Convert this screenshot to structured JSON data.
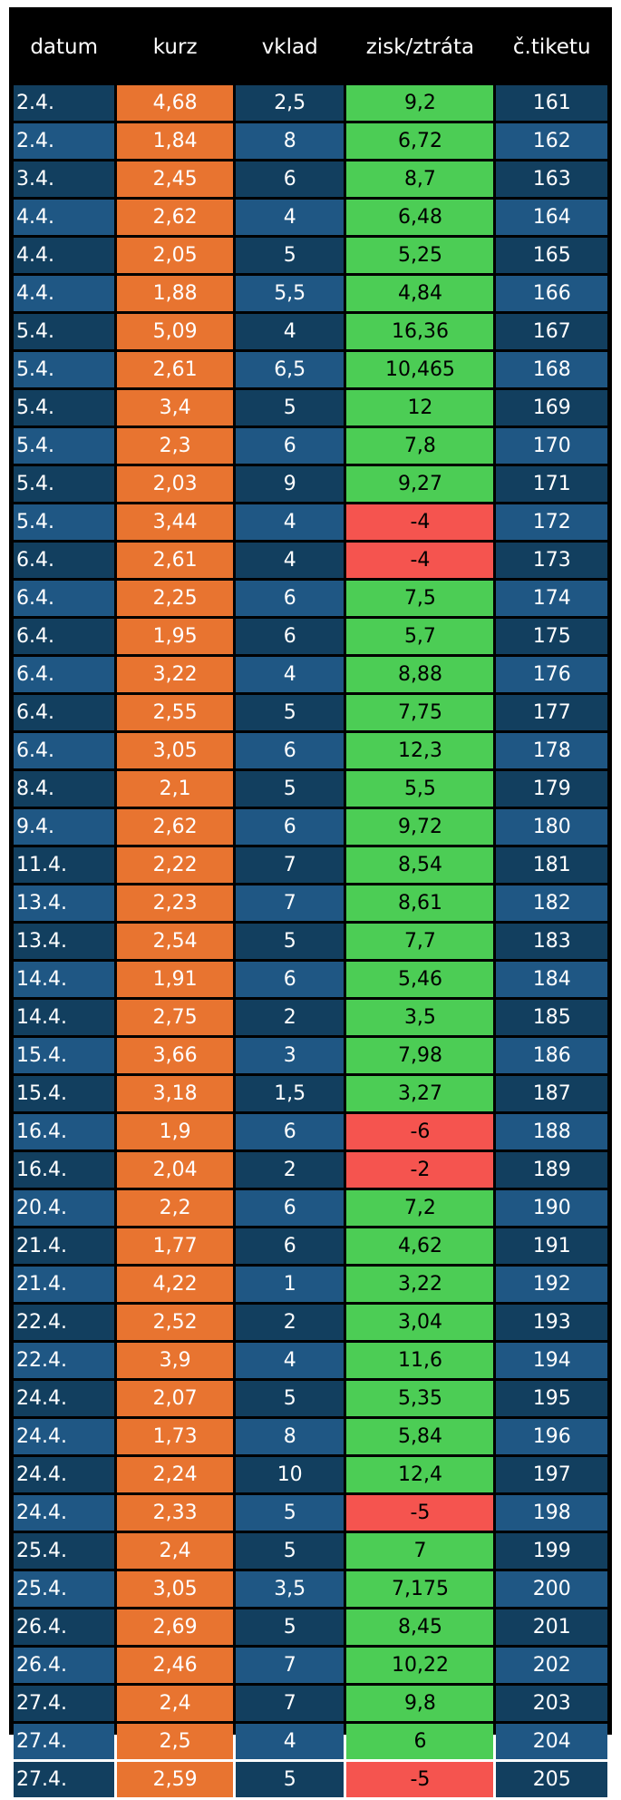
{
  "columns": [
    "datum",
    "kurz",
    "vklad",
    "zisk/ztráta",
    "č.tiketu"
  ],
  "colors": {
    "row_dark": "#123f5f",
    "row_light": "#1f5784",
    "kurz": "#e87430",
    "profit": "#4ccd55",
    "loss": "#f5544f",
    "header": "#000000"
  },
  "rows": [
    {
      "datum": "2.4.",
      "kurz": "4,68",
      "vklad": "2,5",
      "zisk": "9,2",
      "tiket": "161"
    },
    {
      "datum": "2.4.",
      "kurz": "1,84",
      "vklad": "8",
      "zisk": "6,72",
      "tiket": "162"
    },
    {
      "datum": "3.4.",
      "kurz": "2,45",
      "vklad": "6",
      "zisk": "8,7",
      "tiket": "163"
    },
    {
      "datum": "4.4.",
      "kurz": "2,62",
      "vklad": "4",
      "zisk": "6,48",
      "tiket": "164"
    },
    {
      "datum": "4.4.",
      "kurz": "2,05",
      "vklad": "5",
      "zisk": "5,25",
      "tiket": "165"
    },
    {
      "datum": "4.4.",
      "kurz": "1,88",
      "vklad": "5,5",
      "zisk": "4,84",
      "tiket": "166"
    },
    {
      "datum": "5.4.",
      "kurz": "5,09",
      "vklad": "4",
      "zisk": "16,36",
      "tiket": "167"
    },
    {
      "datum": "5.4.",
      "kurz": "2,61",
      "vklad": "6,5",
      "zisk": "10,465",
      "tiket": "168"
    },
    {
      "datum": "5.4.",
      "kurz": "3,4",
      "vklad": "5",
      "zisk": "12",
      "tiket": "169"
    },
    {
      "datum": "5.4.",
      "kurz": "2,3",
      "vklad": "6",
      "zisk": "7,8",
      "tiket": "170"
    },
    {
      "datum": "5.4.",
      "kurz": "2,03",
      "vklad": "9",
      "zisk": "9,27",
      "tiket": "171"
    },
    {
      "datum": "5.4.",
      "kurz": "3,44",
      "vklad": "4",
      "zisk": "-4",
      "tiket": "172"
    },
    {
      "datum": "6.4.",
      "kurz": "2,61",
      "vklad": "4",
      "zisk": "-4",
      "tiket": "173"
    },
    {
      "datum": "6.4.",
      "kurz": "2,25",
      "vklad": "6",
      "zisk": "7,5",
      "tiket": "174"
    },
    {
      "datum": "6.4.",
      "kurz": "1,95",
      "vklad": "6",
      "zisk": "5,7",
      "tiket": "175"
    },
    {
      "datum": "6.4.",
      "kurz": "3,22",
      "vklad": "4",
      "zisk": "8,88",
      "tiket": "176"
    },
    {
      "datum": "6.4.",
      "kurz": "2,55",
      "vklad": "5",
      "zisk": "7,75",
      "tiket": "177"
    },
    {
      "datum": "6.4.",
      "kurz": "3,05",
      "vklad": "6",
      "zisk": "12,3",
      "tiket": "178"
    },
    {
      "datum": "8.4.",
      "kurz": "2,1",
      "vklad": "5",
      "zisk": "5,5",
      "tiket": "179"
    },
    {
      "datum": "9.4.",
      "kurz": "2,62",
      "vklad": "6",
      "zisk": "9,72",
      "tiket": "180"
    },
    {
      "datum": "11.4.",
      "kurz": "2,22",
      "vklad": "7",
      "zisk": "8,54",
      "tiket": "181"
    },
    {
      "datum": "13.4.",
      "kurz": "2,23",
      "vklad": "7",
      "zisk": "8,61",
      "tiket": "182"
    },
    {
      "datum": "13.4.",
      "kurz": "2,54",
      "vklad": "5",
      "zisk": "7,7",
      "tiket": "183"
    },
    {
      "datum": "14.4.",
      "kurz": "1,91",
      "vklad": "6",
      "zisk": "5,46",
      "tiket": "184"
    },
    {
      "datum": "14.4.",
      "kurz": "2,75",
      "vklad": "2",
      "zisk": "3,5",
      "tiket": "185"
    },
    {
      "datum": "15.4.",
      "kurz": "3,66",
      "vklad": "3",
      "zisk": "7,98",
      "tiket": "186"
    },
    {
      "datum": "15.4.",
      "kurz": "3,18",
      "vklad": "1,5",
      "zisk": "3,27",
      "tiket": "187"
    },
    {
      "datum": "16.4.",
      "kurz": "1,9",
      "vklad": "6",
      "zisk": "-6",
      "tiket": "188"
    },
    {
      "datum": "16.4.",
      "kurz": "2,04",
      "vklad": "2",
      "zisk": "-2",
      "tiket": "189"
    },
    {
      "datum": "20.4.",
      "kurz": "2,2",
      "vklad": "6",
      "zisk": "7,2",
      "tiket": "190"
    },
    {
      "datum": "21.4.",
      "kurz": "1,77",
      "vklad": "6",
      "zisk": "4,62",
      "tiket": "191"
    },
    {
      "datum": "21.4.",
      "kurz": "4,22",
      "vklad": "1",
      "zisk": "3,22",
      "tiket": "192"
    },
    {
      "datum": "22.4.",
      "kurz": "2,52",
      "vklad": "2",
      "zisk": "3,04",
      "tiket": "193"
    },
    {
      "datum": "22.4.",
      "kurz": "3,9",
      "vklad": "4",
      "zisk": "11,6",
      "tiket": "194"
    },
    {
      "datum": "24.4.",
      "kurz": "2,07",
      "vklad": "5",
      "zisk": "5,35",
      "tiket": "195"
    },
    {
      "datum": "24.4.",
      "kurz": "1,73",
      "vklad": "8",
      "zisk": "5,84",
      "tiket": "196"
    },
    {
      "datum": "24.4.",
      "kurz": "2,24",
      "vklad": "10",
      "zisk": "12,4",
      "tiket": "197"
    },
    {
      "datum": "24.4.",
      "kurz": "2,33",
      "vklad": "5",
      "zisk": "-5",
      "tiket": "198"
    },
    {
      "datum": "25.4.",
      "kurz": "2,4",
      "vklad": "5",
      "zisk": "7",
      "tiket": "199"
    },
    {
      "datum": "25.4.",
      "kurz": "3,05",
      "vklad": "3,5",
      "zisk": "7,175",
      "tiket": "200"
    },
    {
      "datum": "26.4.",
      "kurz": "2,69",
      "vklad": "5",
      "zisk": "8,45",
      "tiket": "201"
    },
    {
      "datum": "26.4.",
      "kurz": "2,46",
      "vklad": "7",
      "zisk": "10,22",
      "tiket": "202"
    },
    {
      "datum": "27.4.",
      "kurz": "2,4",
      "vklad": "7",
      "zisk": "9,8",
      "tiket": "203"
    },
    {
      "datum": "27.4.",
      "kurz": "2,5",
      "vklad": "4",
      "zisk": "6",
      "tiket": "204"
    },
    {
      "datum": "27.4.",
      "kurz": "2,59",
      "vklad": "5",
      "zisk": "-5",
      "tiket": "205"
    }
  ]
}
